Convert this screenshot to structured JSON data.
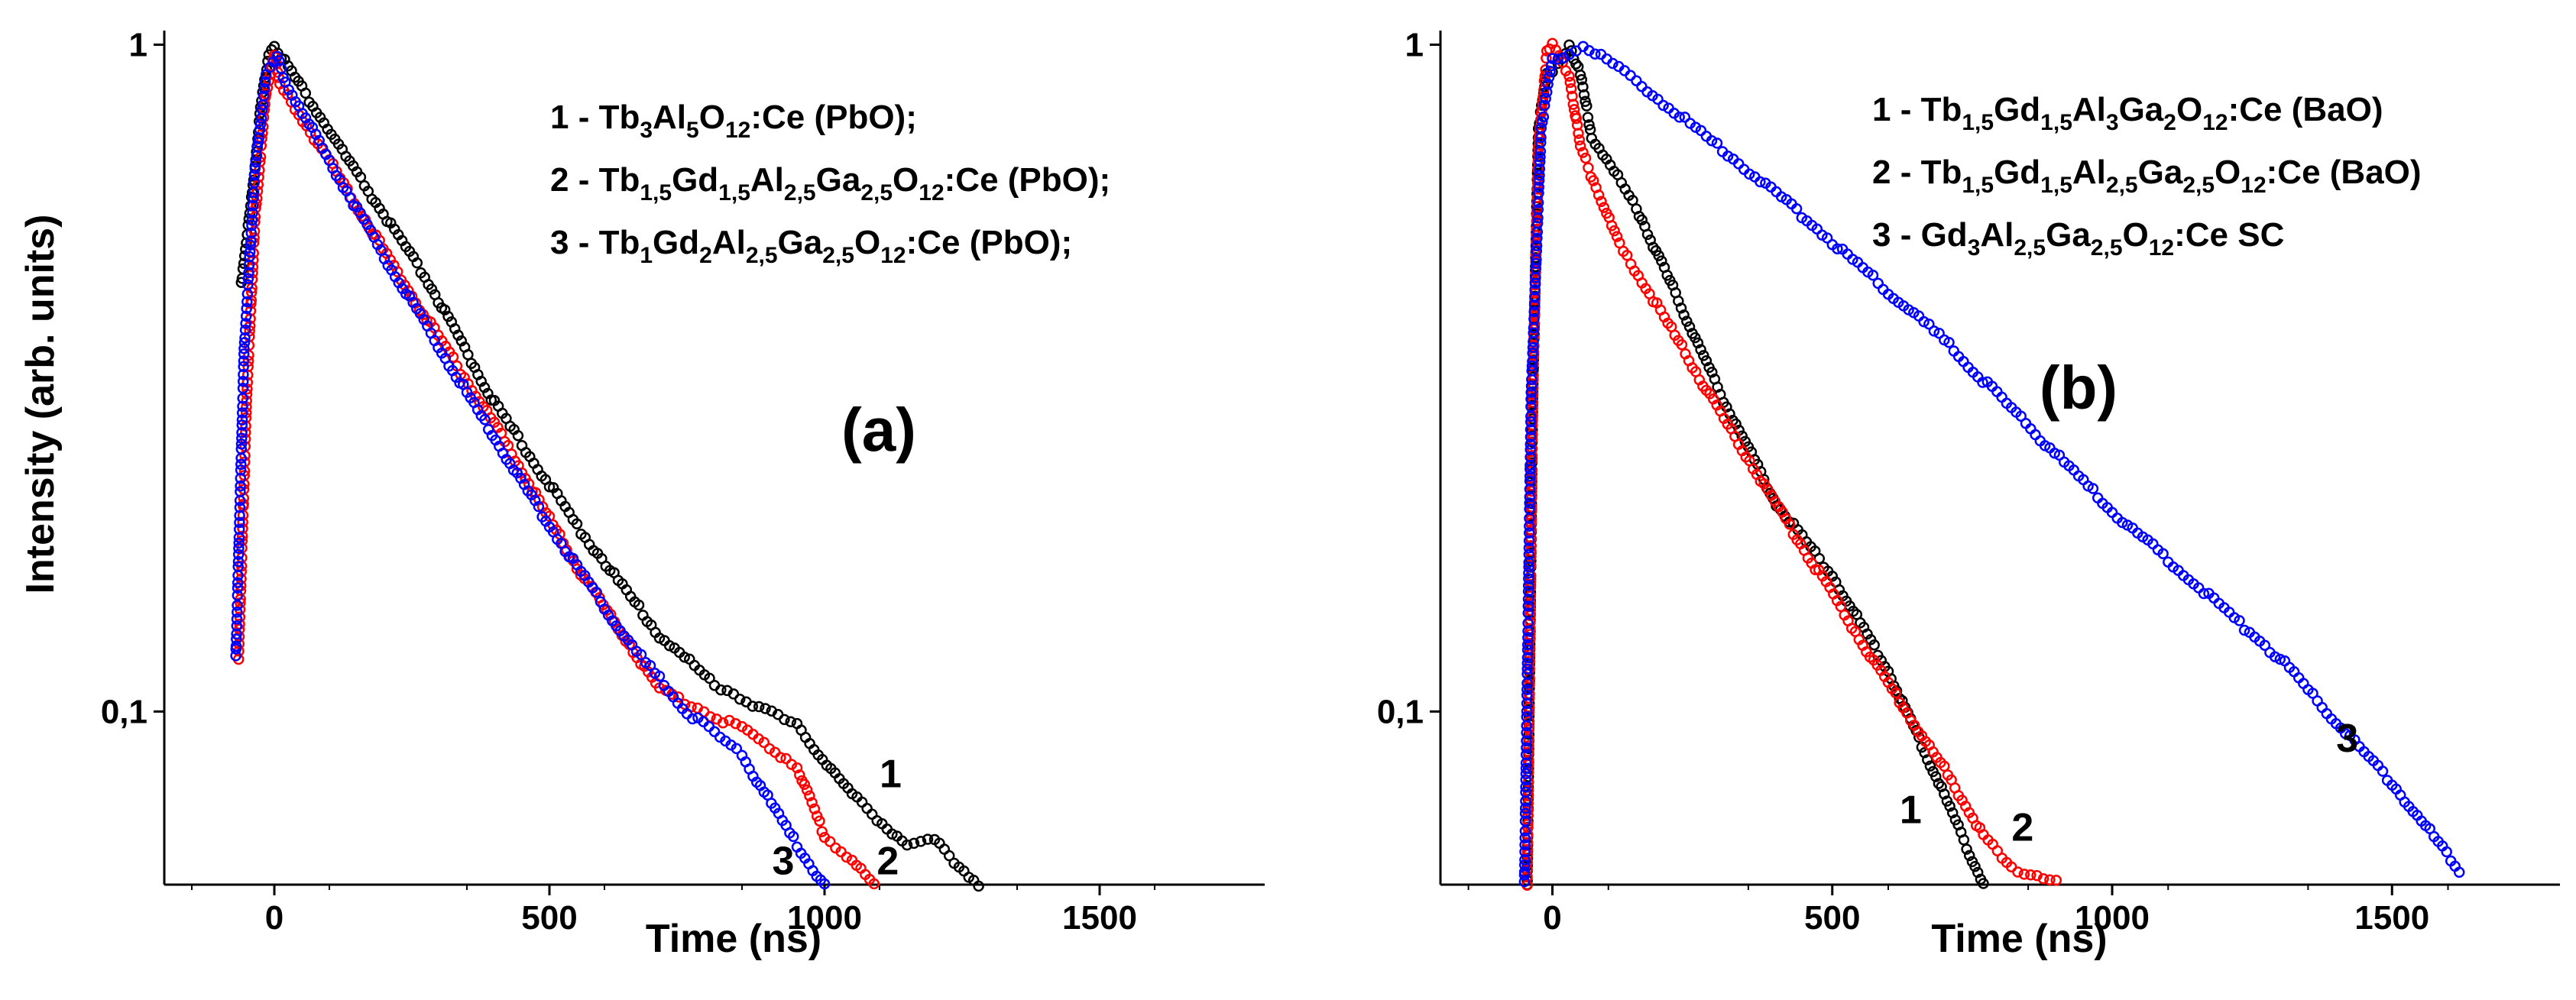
{
  "chart_data": [
    {
      "type": "scatter",
      "panel": "(a)",
      "xlabel": "Time (ns)",
      "ylabel": "Intensity (arb. units)",
      "xlim": [
        -200,
        1800
      ],
      "ylim": [
        0.055,
        1.05
      ],
      "yscale": "log",
      "xticks": [
        0,
        500,
        1000,
        1500
      ],
      "xtick_labels": [
        "0",
        "500",
        "1000",
        "1500"
      ],
      "yticks": [
        0.1,
        1
      ],
      "ytick_labels": [
        "0,1",
        "1"
      ],
      "legend": [
        {
          "num": "1 - ",
          "parts": [
            [
              "Tb",
              ""
            ],
            [
              "3",
              "sub"
            ],
            [
              "Al",
              ""
            ],
            [
              "5",
              "sub"
            ],
            [
              "O",
              ""
            ],
            [
              "12",
              "sub"
            ],
            [
              ":Ce (PbO);",
              ""
            ]
          ]
        },
        {
          "num": "2 - ",
          "parts": [
            [
              "Tb",
              ""
            ],
            [
              "1,5",
              "sub"
            ],
            [
              "Gd",
              ""
            ],
            [
              "1,5",
              "sub"
            ],
            [
              "Al",
              ""
            ],
            [
              "2,5",
              "sub"
            ],
            [
              "Ga",
              ""
            ],
            [
              "2,5",
              "sub"
            ],
            [
              "O",
              ""
            ],
            [
              "12",
              "sub"
            ],
            [
              ":Ce (PbO);",
              ""
            ]
          ]
        },
        {
          "num": "3 - ",
          "parts": [
            [
              "Tb",
              ""
            ],
            [
              "1",
              "sub"
            ],
            [
              "Gd",
              ""
            ],
            [
              "2",
              "sub"
            ],
            [
              "Al",
              ""
            ],
            [
              "2,5",
              "sub"
            ],
            [
              "Ga",
              ""
            ],
            [
              "2,5",
              "sub"
            ],
            [
              "O",
              ""
            ],
            [
              "12",
              "sub"
            ],
            [
              ":Ce (PbO);",
              ""
            ]
          ]
        }
      ],
      "series": [
        {
          "name": "1",
          "color": "#000000",
          "label_at": [
            1120,
            0.077
          ],
          "points": [
            [
              -60,
              0.44
            ],
            [
              -40,
              0.6
            ],
            [
              -25,
              0.8
            ],
            [
              -10,
              0.97
            ],
            [
              0,
              1.0
            ],
            [
              50,
              0.86
            ],
            [
              150,
              0.64
            ],
            [
              280,
              0.44
            ],
            [
              400,
              0.29
            ],
            [
              550,
              0.19
            ],
            [
              700,
              0.13
            ],
            [
              800,
              0.11
            ],
            [
              950,
              0.095
            ],
            [
              1050,
              0.075
            ],
            [
              1150,
              0.063
            ],
            [
              1200,
              0.064
            ],
            [
              1280,
              0.055
            ]
          ]
        },
        {
          "name": "2",
          "color": "#ff0000",
          "label_at": [
            1115,
            0.057
          ],
          "points": [
            [
              -65,
              0.12
            ],
            [
              -50,
              0.3
            ],
            [
              -35,
              0.55
            ],
            [
              -15,
              0.85
            ],
            [
              0,
              0.97
            ],
            [
              10,
              0.87
            ],
            [
              100,
              0.67
            ],
            [
              250,
              0.42
            ],
            [
              400,
              0.27
            ],
            [
              550,
              0.165
            ],
            [
              700,
              0.108
            ],
            [
              850,
              0.094
            ],
            [
              950,
              0.083
            ],
            [
              1000,
              0.065
            ],
            [
              1050,
              0.06
            ],
            [
              1090,
              0.055
            ]
          ]
        },
        {
          "name": "3",
          "color": "#0000ff",
          "label_at": [
            925,
            0.057
          ],
          "points": [
            [
              -70,
              0.12
            ],
            [
              -55,
              0.35
            ],
            [
              -35,
              0.65
            ],
            [
              -15,
              0.9
            ],
            [
              5,
              0.96
            ],
            [
              20,
              0.88
            ],
            [
              100,
              0.67
            ],
            [
              200,
              0.48
            ],
            [
              350,
              0.3
            ],
            [
              500,
              0.19
            ],
            [
              650,
              0.125
            ],
            [
              750,
              0.1
            ],
            [
              850,
              0.086
            ],
            [
              950,
              0.063
            ],
            [
              1000,
              0.055
            ]
          ]
        }
      ]
    },
    {
      "type": "scatter",
      "panel": "(b)",
      "xlabel": "Time (ns)",
      "ylabel": "",
      "xlim": [
        -200,
        1800
      ],
      "ylim": [
        0.055,
        1.05
      ],
      "yscale": "log",
      "xticks": [
        0,
        500,
        1000,
        1500
      ],
      "xtick_labels": [
        "0",
        "500",
        "1000",
        "1500"
      ],
      "yticks": [
        0.1,
        1
      ],
      "ytick_labels": [
        "0,1",
        "1"
      ],
      "legend": [
        {
          "num": "1 - ",
          "parts": [
            [
              "Tb",
              ""
            ],
            [
              "1,5",
              "sub"
            ],
            [
              "Gd",
              ""
            ],
            [
              "1,5",
              "sub"
            ],
            [
              "Al",
              ""
            ],
            [
              "3",
              "sub"
            ],
            [
              "Ga",
              ""
            ],
            [
              "2",
              "sub"
            ],
            [
              "O",
              ""
            ],
            [
              "12",
              "sub"
            ],
            [
              ":Ce (BaO)",
              ""
            ]
          ]
        },
        {
          "num": "2 - ",
          "parts": [
            [
              "Tb",
              ""
            ],
            [
              "1,5",
              "sub"
            ],
            [
              "Gd",
              ""
            ],
            [
              "1,5",
              "sub"
            ],
            [
              "Al",
              ""
            ],
            [
              "2,5",
              "sub"
            ],
            [
              "Ga",
              ""
            ],
            [
              "2,5",
              "sub"
            ],
            [
              "O",
              ""
            ],
            [
              "12",
              "sub"
            ],
            [
              ":Ce (BaO)",
              ""
            ]
          ]
        },
        {
          "num": "3 - ",
          "parts": [
            [
              "Gd",
              ""
            ],
            [
              "3",
              "sub"
            ],
            [
              "Al",
              ""
            ],
            [
              "2,5",
              "sub"
            ],
            [
              "Ga",
              ""
            ],
            [
              "2,5",
              "sub"
            ],
            [
              "O",
              ""
            ],
            [
              "12",
              "sub"
            ],
            [
              ":Ce SC",
              ""
            ]
          ]
        }
      ],
      "series": [
        {
          "name": "1",
          "color": "#000000",
          "label_at": [
            640,
            0.068
          ],
          "points": [
            [
              -45,
              0.055
            ],
            [
              -35,
              0.3
            ],
            [
              -25,
              0.75
            ],
            [
              -10,
              0.9
            ],
            [
              10,
              0.94
            ],
            [
              30,
              1.0
            ],
            [
              50,
              0.9
            ],
            [
              70,
              0.73
            ],
            [
              150,
              0.57
            ],
            [
              300,
              0.3
            ],
            [
              400,
              0.205
            ],
            [
              500,
              0.16
            ],
            [
              600,
              0.115
            ],
            [
              700,
              0.075
            ],
            [
              770,
              0.055
            ]
          ]
        },
        {
          "name": "2",
          "color": "#ff0000",
          "label_at": [
            840,
            0.064
          ],
          "points": [
            [
              -45,
              0.055
            ],
            [
              -35,
              0.3
            ],
            [
              -25,
              0.7
            ],
            [
              -10,
              0.97
            ],
            [
              0,
              1.0
            ],
            [
              30,
              0.9
            ],
            [
              50,
              0.7
            ],
            [
              120,
              0.5
            ],
            [
              200,
              0.39
            ],
            [
              300,
              0.28
            ],
            [
              450,
              0.175
            ],
            [
              600,
              0.11
            ],
            [
              700,
              0.082
            ],
            [
              770,
              0.065
            ],
            [
              820,
              0.058
            ],
            [
              900,
              0.056
            ]
          ]
        },
        {
          "name": "3",
          "color": "#0000ff",
          "label_at": [
            1420,
            0.087
          ],
          "points": [
            [
              -50,
              0.055
            ],
            [
              -38,
              0.3
            ],
            [
              -20,
              0.75
            ],
            [
              0,
              0.95
            ],
            [
              30,
              0.97
            ],
            [
              55,
              1.0
            ],
            [
              150,
              0.88
            ],
            [
              400,
              0.6
            ],
            [
              700,
              0.36
            ],
            [
              1000,
              0.2
            ],
            [
              1300,
              0.12
            ],
            [
              1500,
              0.078
            ],
            [
              1620,
              0.058
            ]
          ]
        }
      ]
    }
  ]
}
